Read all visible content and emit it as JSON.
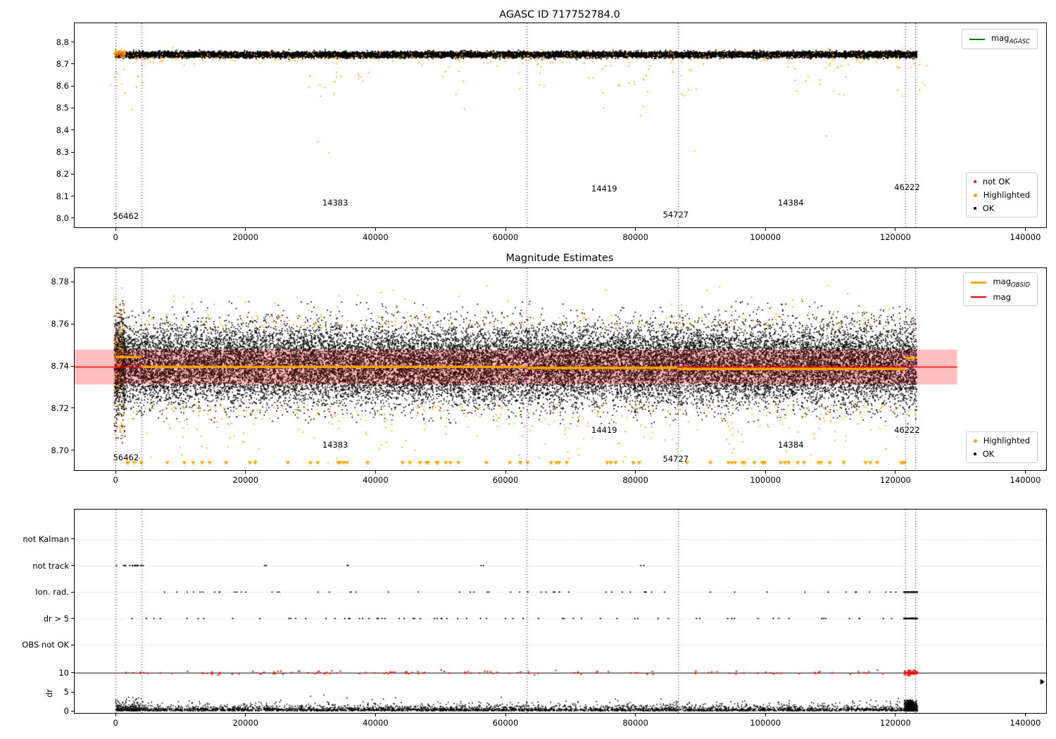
{
  "chart_data": [
    {
      "id": "agasc",
      "type": "scatter",
      "title": "AGASC ID 717752784.0",
      "xlim": [
        -6300,
        143200
      ],
      "ylim": [
        7.958,
        8.885
      ],
      "xticks": [
        0,
        20000,
        40000,
        60000,
        80000,
        100000,
        120000,
        140000
      ],
      "xtick_labels": [
        "0",
        "20000",
        "40000",
        "60000",
        "80000",
        "100000",
        "120000",
        "140000"
      ],
      "yticks": [
        8.0,
        8.1,
        8.2,
        8.3,
        8.4,
        8.5,
        8.6,
        8.7,
        8.8
      ],
      "ytick_labels": [
        "8.0",
        "8.1",
        "8.2",
        "8.3",
        "8.4",
        "8.5",
        "8.6",
        "8.7",
        "8.8"
      ],
      "vlines": {
        "xs": [
          0,
          4000,
          63300,
          86500,
          121500,
          123000
        ],
        "color": "#800080"
      },
      "hlines": [
        {
          "y": 8.74,
          "x0": 0,
          "x1": 123300,
          "color": "#008000",
          "lw": 1.5,
          "z": "under"
        }
      ],
      "annotations": [
        {
          "text": "56462",
          "x": -600,
          "y": 8.01
        },
        {
          "text": "14383",
          "x": 31600,
          "y": 8.07
        },
        {
          "text": "14419",
          "x": 73000,
          "y": 8.135
        },
        {
          "text": "54727",
          "x": 84000,
          "y": 8.015
        },
        {
          "text": "14384",
          "x": 101700,
          "y": 8.07
        },
        {
          "text": "46222",
          "x": 119600,
          "y": 8.14
        }
      ],
      "legends": [
        {
          "pos": {
            "top": 8,
            "right": 12
          },
          "entries": [
            {
              "base": "mag",
              "sub": "AGASC",
              "marker": "line",
              "color": "#008000",
              "lw": 2
            }
          ]
        },
        {
          "pos": {
            "bottom": 14,
            "right": 12
          },
          "entries": [
            {
              "label": "not OK",
              "marker": "dot",
              "color": "#ff0000",
              "msize": 4
            },
            {
              "label": "Highlighted",
              "marker": "dot",
              "color": "#FFA500",
              "msize": 5
            },
            {
              "label": "OK",
              "marker": "dot",
              "color": "#000000",
              "msize": 4
            }
          ]
        }
      ],
      "series": [
        {
          "name": "ok",
          "color": "#000000",
          "shape": "dot",
          "size": 1.9,
          "n": 14000,
          "x": {
            "dist": "uniform",
            "min": 0,
            "max": 123300
          },
          "y": {
            "dist": "normal",
            "mean": 8.742,
            "std": 0.0065,
            "clip": [
              8.72,
              8.766
            ]
          }
        },
        {
          "name": "highlighted-band",
          "color": "#FFA500",
          "shape": "dot",
          "size": 2.1,
          "n": 330,
          "x": {
            "dist": "uniform",
            "min": 0,
            "max": 123300
          },
          "y": {
            "dist": "normal",
            "mean": 8.733,
            "std": 0.015,
            "clip": [
              8.685,
              8.775
            ]
          }
        },
        {
          "name": "highlighted-start",
          "color": "#FFA500",
          "shape": "dot",
          "size": 2.1,
          "n": 70,
          "x": {
            "dist": "uniform",
            "min": -300,
            "max": 1500
          },
          "y": {
            "dist": "normal",
            "mean": 8.745,
            "std": 0.009,
            "clip": [
              8.72,
              8.77
            ]
          }
        },
        {
          "name": "highlighted-tail",
          "color": "#FFA500",
          "shape": "dot",
          "size": 2.1,
          "n": 110,
          "x": {
            "dist": "clusters",
            "centers": [
              1800,
              31500,
              36500,
              52000,
              63500,
              74500,
              80000,
              87000,
              104500,
              110500,
              122400
            ],
            "spread": 2600
          },
          "y": {
            "dist": "exp_down",
            "top": 8.705,
            "scale": 0.09,
            "min": 8.25
          }
        },
        {
          "name": "not-ok",
          "color": "#ff0000",
          "shape": "dot",
          "size": 2,
          "n": 3,
          "x": {
            "dist": "uniform",
            "min": 300,
            "max": 2500
          },
          "y": {
            "dist": "normal",
            "mean": 8.742,
            "std": 0.004,
            "clip": [
              8.73,
              8.75
            ]
          }
        }
      ]
    },
    {
      "id": "magnitude",
      "type": "scatter",
      "title": "Magnitude Estimates",
      "xlim": [
        -6300,
        143200
      ],
      "ylim": [
        8.6905,
        8.7865
      ],
      "xticks": [
        0,
        20000,
        40000,
        60000,
        80000,
        100000,
        120000,
        140000
      ],
      "xtick_labels": [
        "0",
        "20000",
        "40000",
        "60000",
        "80000",
        "100000",
        "120000",
        "140000"
      ],
      "yticks": [
        8.7,
        8.72,
        8.74,
        8.76,
        8.78
      ],
      "ytick_labels": [
        "8.70",
        "8.72",
        "8.74",
        "8.76",
        "8.78"
      ],
      "vlines": {
        "xs": [
          0,
          4000,
          63300,
          86500,
          121500,
          123000
        ],
        "color": "#800080"
      },
      "bands": [
        {
          "y0": 8.7312,
          "y1": 8.7478,
          "x0": -6300,
          "x1": 129500,
          "color": "rgba(255,40,40,0.13)",
          "z": "under"
        },
        {
          "y0": 8.7312,
          "y1": 8.7478,
          "x0": -6300,
          "x1": 129500,
          "color": "rgba(255,30,30,0.18)",
          "z": "over"
        }
      ],
      "hlines": [
        {
          "y": 8.7395,
          "x0": -6300,
          "x1": 129500,
          "color": "#ff0000",
          "lw": 1.6,
          "z": "over"
        }
      ],
      "segments": [
        {
          "x0": 0,
          "x1": 4000,
          "y": 8.7443,
          "color": "#FFA500",
          "lw": 3.5
        },
        {
          "x0": 4000,
          "x1": 63300,
          "y": 8.7396,
          "color": "#FFA500",
          "lw": 3.5
        },
        {
          "x0": 63300,
          "x1": 86500,
          "y": 8.7391,
          "color": "#FFA500",
          "lw": 3.5
        },
        {
          "x0": 86500,
          "x1": 121500,
          "y": 8.7386,
          "color": "#FFA500",
          "lw": 3.5
        },
        {
          "x0": 121500,
          "x1": 123300,
          "y": 8.7438,
          "color": "#FFA500",
          "lw": 3.5
        }
      ],
      "annotations": [
        {
          "text": "56462",
          "x": -600,
          "y": 8.6965
        },
        {
          "text": "14383",
          "x": 31600,
          "y": 8.7025
        },
        {
          "text": "14419",
          "x": 73000,
          "y": 8.7095
        },
        {
          "text": "54727",
          "x": 84000,
          "y": 8.696
        },
        {
          "text": "14384",
          "x": 101700,
          "y": 8.7025
        },
        {
          "text": "46222",
          "x": 119600,
          "y": 8.7095
        }
      ],
      "legends": [
        {
          "pos": {
            "top": 6,
            "right": 12
          },
          "entries": [
            {
              "base": "mag",
              "sub": "OBSID",
              "marker": "line",
              "color": "#FFA500",
              "lw": 3
            },
            {
              "base": "mag",
              "marker": "line",
              "color": "#ff0000",
              "lw": 2
            }
          ]
        },
        {
          "pos": {
            "bottom": 10,
            "right": 12
          },
          "entries": [
            {
              "label": "Highlighted",
              "marker": "dot",
              "color": "#FFA500",
              "msize": 5
            },
            {
              "label": "OK",
              "marker": "dot",
              "color": "#000000",
              "msize": 4
            }
          ]
        }
      ],
      "series": [
        {
          "name": "ok",
          "color": "#000000",
          "shape": "dot",
          "size": 1.7,
          "n": 26000,
          "x": {
            "dist": "uniform",
            "min": 0,
            "max": 123300
          },
          "y": {
            "dist": "normal",
            "mean": 8.7405,
            "std": 0.0095,
            "clip": [
              8.7125,
              8.771
            ]
          }
        },
        {
          "name": "ok-start",
          "color": "#000000",
          "shape": "dot",
          "size": 1.7,
          "n": 600,
          "x": {
            "dist": "uniform",
            "min": -200,
            "max": 1500
          },
          "y": {
            "dist": "normal",
            "mean": 8.7405,
            "std": 0.013,
            "clip": [
              8.703,
              8.773
            ]
          }
        },
        {
          "name": "highlighted-above",
          "color": "#FFA500",
          "shape": "dot",
          "size": 2.1,
          "n": 250,
          "x": {
            "dist": "uniform",
            "min": 0,
            "max": 123300
          },
          "y": {
            "dist": "exp_up",
            "base": 8.758,
            "scale": 0.005,
            "max": 8.779
          }
        },
        {
          "name": "highlighted-below",
          "color": "#FFA500",
          "shape": "dot",
          "size": 2.1,
          "n": 380,
          "x": {
            "dist": "uniform",
            "min": 0,
            "max": 123300
          },
          "y": {
            "dist": "exp_down",
            "top": 8.7215,
            "scale": 0.008,
            "min": 8.6925
          }
        },
        {
          "name": "highlighted-start",
          "color": "#FFA500",
          "shape": "dot",
          "size": 2.1,
          "n": 130,
          "x": {
            "dist": "uniform",
            "min": -300,
            "max": 1300
          },
          "y": {
            "dist": "normal",
            "mean": 8.741,
            "std": 0.016,
            "clip": [
              8.696,
              8.772
            ]
          }
        },
        {
          "name": "clipped-low-triangles",
          "color": "#FFA500",
          "shape": "tri_down",
          "size": 3.2,
          "n": 70,
          "x": {
            "dist": "uniform",
            "min": 0,
            "max": 123300
          },
          "y": {
            "dist": "const",
            "value": 8.694
          }
        }
      ]
    },
    {
      "id": "flags",
      "type": "scatter",
      "title": "",
      "xlim": [
        -6300,
        143200
      ],
      "ylim": [
        -0.5,
        52.5
      ],
      "xticks": [
        0,
        20000,
        40000,
        60000,
        80000,
        100000,
        120000,
        140000
      ],
      "xtick_labels": [
        "0",
        "20000",
        "40000",
        "60000",
        "80000",
        "100000",
        "120000",
        "140000"
      ],
      "yticks": [
        44.8,
        37.9,
        31.0,
        24.1,
        17.2,
        10,
        5,
        0
      ],
      "ytick_labels": [
        "not Kalman",
        "not track",
        "Ion. rad.",
        "dr > 5",
        "OBS not OK",
        "10",
        "5",
        "0"
      ],
      "ylabel": "dr",
      "grid_y": {
        "ys": [
          44.8,
          37.9,
          31.0,
          24.1,
          17.2
        ],
        "color": "#b8b8b8"
      },
      "vlines": {
        "xs": [
          0,
          4000,
          63300,
          86500,
          121500,
          123000
        ],
        "color": "#800080"
      },
      "hlines": [
        {
          "y": 10,
          "x0": -6300,
          "x1": 143200,
          "color": "#000000",
          "lw": 1.2,
          "z": "under"
        }
      ],
      "annotations": [],
      "legends": [],
      "series": [
        {
          "name": "not-track-start",
          "color": "#000000",
          "shape": "dot",
          "size": 2.2,
          "n": 16,
          "x": {
            "dist": "uniform",
            "min": 0,
            "max": 4300
          },
          "y": {
            "dist": "const",
            "value": 37.9
          }
        },
        {
          "name": "not-track",
          "color": "#000000",
          "shape": "dot",
          "size": 2.2,
          "n": 8,
          "x": {
            "dist": "clusters",
            "centers": [
              23000,
              35600,
              56500,
              81000
            ],
            "spread": 300
          },
          "y": {
            "dist": "const",
            "value": 37.9
          }
        },
        {
          "name": "ion-rad",
          "color": "#000000",
          "shape": "dot",
          "size": 2.2,
          "n": 60,
          "x": {
            "dist": "uniform",
            "min": 0,
            "max": 120500
          },
          "y": {
            "dist": "const",
            "value": 31.0
          }
        },
        {
          "name": "ion-rad-end",
          "color": "#000000",
          "shape": "dot",
          "size": 2.2,
          "n": 70,
          "x": {
            "dist": "uniform",
            "min": 121300,
            "max": 123400
          },
          "y": {
            "dist": "const",
            "value": 31.0
          }
        },
        {
          "name": "dr-gt-5",
          "color": "#000000",
          "shape": "dot",
          "size": 2.2,
          "n": 70,
          "x": {
            "dist": "uniform",
            "min": 0,
            "max": 120500
          },
          "y": {
            "dist": "const",
            "value": 24.1
          }
        },
        {
          "name": "dr-gt-5-end",
          "color": "#000000",
          "shape": "dot",
          "size": 2.2,
          "n": 70,
          "x": {
            "dist": "uniform",
            "min": 121300,
            "max": 123400
          },
          "y": {
            "dist": "const",
            "value": 24.1
          }
        },
        {
          "name": "dr-red-clipped",
          "color": "#ff0000",
          "shape": "dot",
          "size": 2,
          "n": 130,
          "x": {
            "dist": "uniform",
            "min": 0,
            "max": 121000
          },
          "y": {
            "dist": "normal",
            "mean": 10,
            "std": 0.28,
            "clip": [
              9.3,
              10.7
            ]
          }
        },
        {
          "name": "dr-red-end",
          "color": "#ff0000",
          "shape": "dot",
          "size": 2,
          "n": 60,
          "x": {
            "dist": "uniform",
            "min": 121300,
            "max": 123400
          },
          "y": {
            "dist": "normal",
            "mean": 10,
            "std": 0.3,
            "clip": [
              9.2,
              10.8
            ]
          }
        },
        {
          "name": "dr-red-outlier",
          "color": "#ff0000",
          "shape": "dot",
          "size": 2,
          "n": 1,
          "x": {
            "dist": "const",
            "value": 35600
          },
          "y": {
            "dist": "const",
            "value": 3.4
          }
        },
        {
          "name": "dr-ok",
          "color": "#000000",
          "shape": "dot",
          "size": 1.6,
          "n": 3600,
          "x": {
            "dist": "uniform",
            "min": 0,
            "max": 123300
          },
          "y": {
            "dist": "exp_up",
            "base": 0.05,
            "scale": 0.5,
            "max": 4.3
          }
        },
        {
          "name": "dr-ok-start",
          "color": "#000000",
          "shape": "dot",
          "size": 1.6,
          "n": 160,
          "x": {
            "dist": "uniform",
            "min": 0,
            "max": 4300
          },
          "y": {
            "dist": "exp_up",
            "base": 0.05,
            "scale": 0.9,
            "max": 3.6
          }
        },
        {
          "name": "dr-ok-end-blob",
          "color": "#000000",
          "shape": "dot",
          "size": 1.8,
          "n": 700,
          "x": {
            "dist": "normal",
            "mean": 122300,
            "std": 500,
            "clip": [
              121350,
              123400
            ]
          },
          "y": {
            "dist": "exp_up",
            "base": 0.05,
            "scale": 0.8,
            "max": 2.9
          }
        },
        {
          "name": "clip-right-arrow",
          "color": "#000000",
          "shape": "tri_right",
          "size": 4,
          "n": 1,
          "x": {
            "dist": "const",
            "value": 142600
          },
          "y": {
            "dist": "const",
            "value": 7.6
          }
        }
      ]
    }
  ]
}
